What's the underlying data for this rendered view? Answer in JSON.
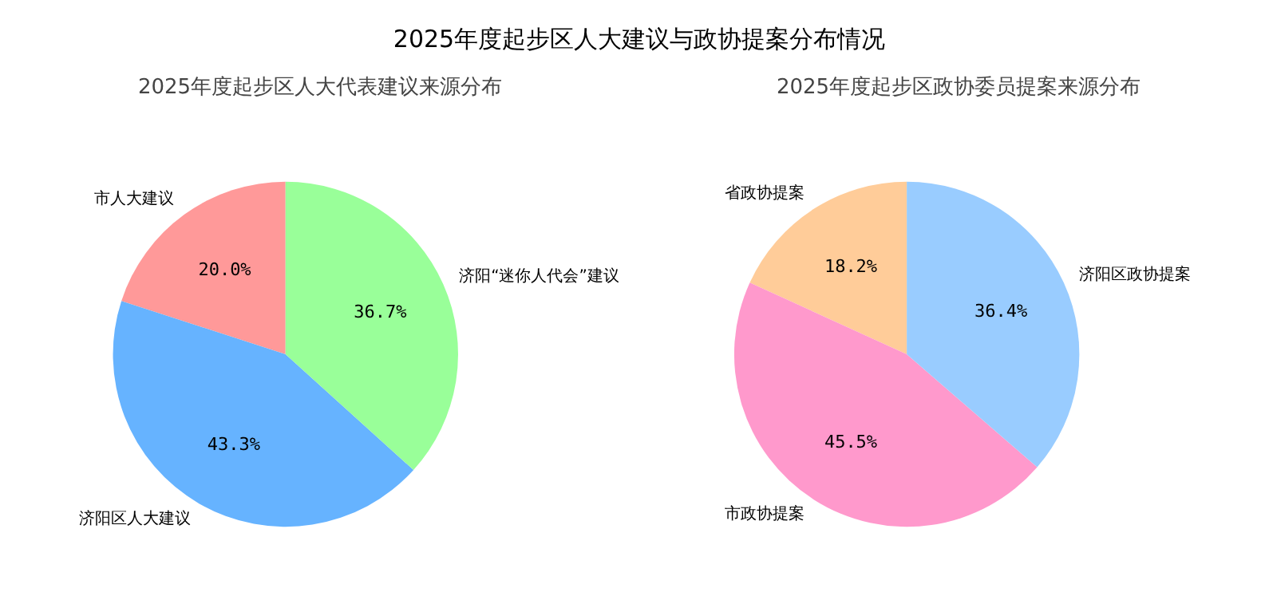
{
  "chart_data": [
    {
      "type": "other",
      "title": "2025年度起步区人大建议与政协提案分布情况"
    },
    {
      "type": "pie",
      "title": "2025年度起步区人大代表建议来源分布",
      "categories": [
        "市人大建议",
        "济阳区人大建议",
        "济阳“迷你人代会”建议"
      ],
      "values": [
        20.0,
        43.3,
        36.7
      ],
      "colors": [
        "#ff9999",
        "#66b3ff",
        "#99ff99"
      ],
      "value_labels": [
        "20.0%",
        "43.3%",
        "36.7%"
      ]
    },
    {
      "type": "pie",
      "title": "2025年度起步区政协委员提案来源分布",
      "categories": [
        "省政协提案",
        "市政协提案",
        "济阳区政协提案"
      ],
      "values": [
        18.2,
        45.5,
        36.4
      ],
      "colors": [
        "#ffcc99",
        "#ff99cc",
        "#99ccff"
      ],
      "value_labels": [
        "18.2%",
        "45.5%",
        "36.4%"
      ]
    }
  ]
}
